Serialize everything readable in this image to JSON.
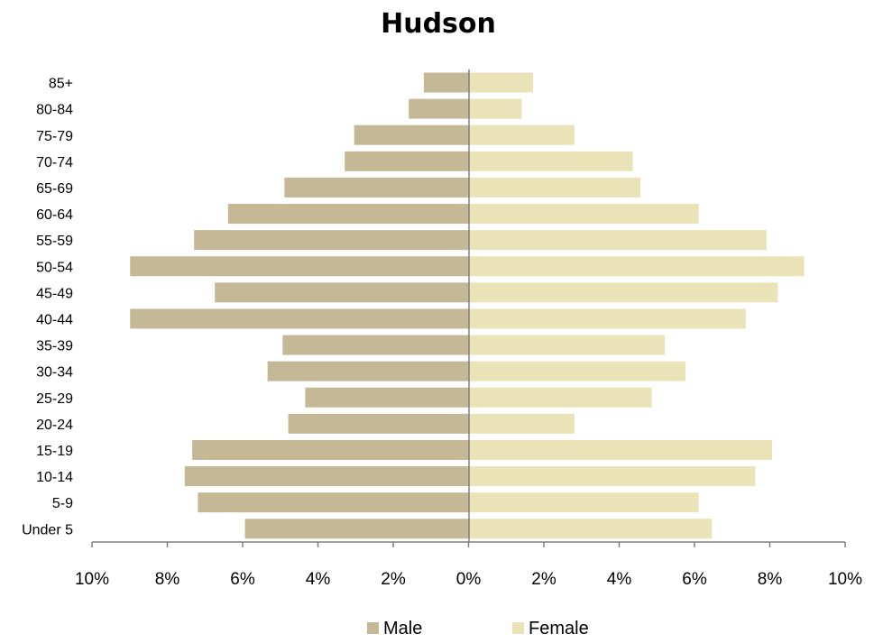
{
  "chart_data": {
    "type": "bar",
    "orientation": "horizontal",
    "layout": "population-pyramid",
    "title": "Hudson",
    "categories": [
      "85+",
      "80-84",
      "75-79",
      "70-74",
      "65-69",
      "60-64",
      "55-59",
      "50-54",
      "45-49",
      "40-44",
      "35-39",
      "30-34",
      "25-29",
      "20-24",
      "15-19",
      "10-14",
      "5-9",
      "Under 5"
    ],
    "series": [
      {
        "name": "Male",
        "color": "#c4b897",
        "side": "left",
        "values": [
          1.2,
          1.6,
          3.05,
          3.3,
          4.9,
          6.4,
          7.3,
          9.0,
          6.75,
          9.0,
          4.95,
          5.35,
          4.35,
          4.8,
          7.35,
          7.55,
          7.2,
          5.95
        ]
      },
      {
        "name": "Female",
        "color": "#ebe3b8",
        "side": "right",
        "values": [
          1.7,
          1.4,
          2.8,
          4.35,
          4.55,
          6.1,
          7.9,
          8.9,
          8.2,
          7.35,
          5.2,
          5.75,
          4.85,
          2.8,
          8.05,
          7.6,
          6.1,
          6.45
        ]
      }
    ],
    "x_ticks": [
      "10%",
      "8%",
      "6%",
      "4%",
      "2%",
      "0%",
      "2%",
      "4%",
      "6%",
      "8%",
      "10%"
    ],
    "xlim": [
      -10,
      10
    ],
    "unit": "%",
    "legend_position": "bottom-center",
    "grid": false
  }
}
